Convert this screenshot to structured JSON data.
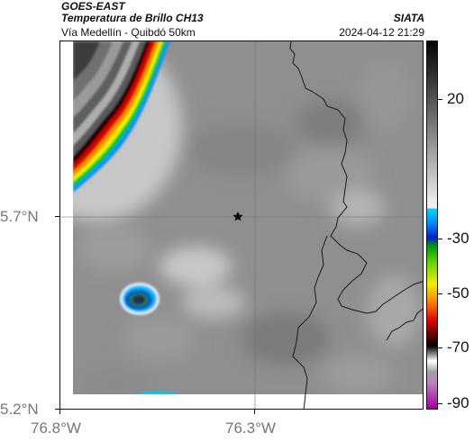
{
  "header": {
    "title_line1": "GOES-EAST",
    "title_line2": "Temperatura de Brillo CH13",
    "subtitle": "Vía Medellín - Quibdó 50km",
    "agency": "SIATA",
    "datetime": "2024-04-12 21:29"
  },
  "map": {
    "lat_labels": [
      "5.7°N",
      "5.2°N"
    ],
    "lon_labels": [
      "76.8°W",
      "76.3°W"
    ],
    "marker": "star-marker"
  },
  "colorbar": {
    "labels": [
      "20",
      "-30",
      "-50",
      "-70",
      "-90"
    ],
    "unit": ""
  },
  "colors": {
    "background_gray": "#8c8c8c",
    "border_lines": "#222222"
  }
}
